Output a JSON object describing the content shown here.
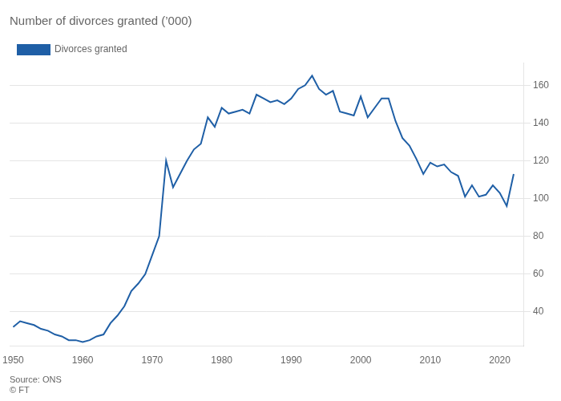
{
  "chart_data": {
    "type": "line",
    "title": "Number of divorces granted (’000)",
    "annotations": [
      "Source: ONS",
      "© FT"
    ],
    "x": [
      1950,
      1951,
      1952,
      1953,
      1954,
      1955,
      1956,
      1957,
      1958,
      1959,
      1960,
      1961,
      1962,
      1963,
      1964,
      1965,
      1966,
      1967,
      1968,
      1969,
      1970,
      1971,
      1972,
      1973,
      1974,
      1975,
      1976,
      1977,
      1978,
      1979,
      1980,
      1981,
      1982,
      1983,
      1984,
      1985,
      1986,
      1987,
      1988,
      1989,
      1990,
      1991,
      1992,
      1993,
      1994,
      1995,
      1996,
      1997,
      1998,
      1999,
      2000,
      2001,
      2002,
      2003,
      2004,
      2005,
      2006,
      2007,
      2008,
      2009,
      2010,
      2011,
      2012,
      2013,
      2014,
      2015,
      2016,
      2017,
      2018,
      2019,
      2020,
      2021,
      2022
    ],
    "series": [
      {
        "name": "Divorces granted",
        "color": "#1f5fa6",
        "values": [
          32,
          35,
          34,
          33,
          31,
          30,
          28,
          27,
          25,
          25,
          24,
          25,
          27,
          28,
          34,
          38,
          43,
          51,
          55,
          60,
          70,
          80,
          120,
          106,
          113,
          120,
          126,
          129,
          143,
          138,
          148,
          145,
          146,
          147,
          145,
          155,
          153,
          151,
          152,
          150,
          153,
          158,
          160,
          165,
          158,
          155,
          157,
          146,
          145,
          144,
          154,
          143,
          148,
          153,
          153,
          141,
          132,
          128,
          121,
          113,
          119,
          117,
          118,
          114,
          112,
          101,
          107,
          101,
          102,
          107,
          103,
          96,
          113
        ]
      }
    ],
    "xlim": [
      1949.5,
      2023.5
    ],
    "xticks": [
      1950,
      1960,
      1970,
      1980,
      1990,
      2000,
      2010,
      2020
    ],
    "ylim": [
      22,
      172
    ],
    "yticks": [
      40,
      60,
      80,
      100,
      120,
      140,
      160
    ],
    "grid": true,
    "legend": "upper left"
  }
}
